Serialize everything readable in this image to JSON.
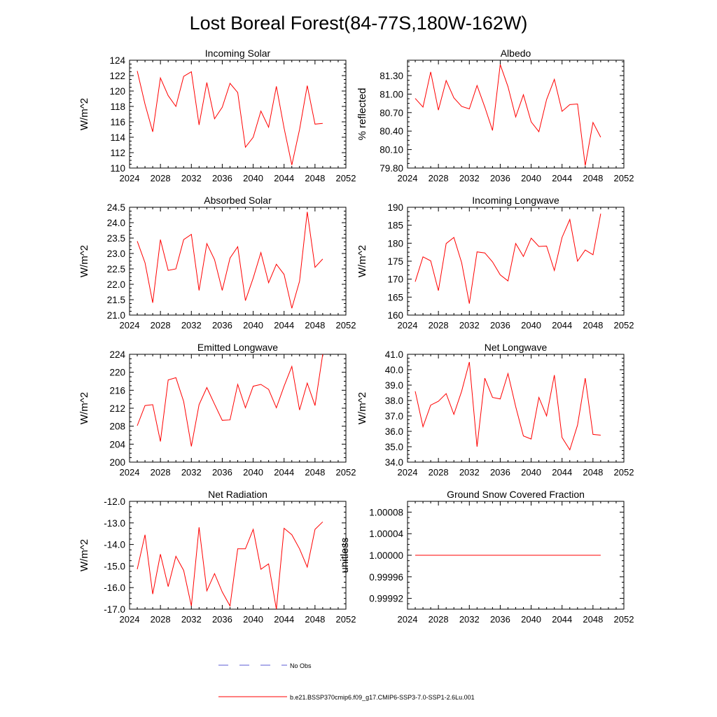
{
  "figure": {
    "title": "Lost Boreal Forest(84-77S,180W-162W)",
    "legend": [
      {
        "label": "No Obs",
        "color": "#5b5bd6",
        "dashed": true
      },
      {
        "label": "b.e21.BSSP370cmip6.f09_g17.CMIP6-SSP3-7.0-SSP1-2.6Lu.001",
        "color": "#ff0000",
        "dashed": false
      }
    ]
  },
  "chart_data": [
    {
      "type": "line",
      "title": "Incoming Solar",
      "xlabel": "",
      "ylabel": "W/m^2",
      "xlim": [
        2024,
        2052
      ],
      "xticks": [
        "2024",
        "2028",
        "2032",
        "2036",
        "2040",
        "2044",
        "2048",
        "2052"
      ],
      "ylim": [
        110,
        124
      ],
      "yticks": [
        "110",
        "112",
        "114",
        "116",
        "118",
        "120",
        "122",
        "124"
      ],
      "line_color": "#ff0000",
      "x": [
        2025,
        2026,
        2027,
        2028,
        2029,
        2030,
        2031,
        2032,
        2033,
        2034,
        2035,
        2036,
        2037,
        2038,
        2039,
        2040,
        2041,
        2042,
        2043,
        2044,
        2045,
        2046,
        2047,
        2048,
        2049
      ],
      "values": [
        122.6,
        118.3,
        114.7,
        121.7,
        119.4,
        118.0,
        121.9,
        122.5,
        115.6,
        121.1,
        116.4,
        117.9,
        121.0,
        119.8,
        112.7,
        114.0,
        117.4,
        115.3,
        120.6,
        115.2,
        110.4,
        115.0,
        120.7,
        115.7,
        115.8
      ]
    },
    {
      "type": "line",
      "title": "Albedo",
      "xlabel": "",
      "ylabel": "% reflected",
      "xlim": [
        2024,
        2052
      ],
      "xticks": [
        "2024",
        "2028",
        "2032",
        "2036",
        "2040",
        "2044",
        "2048",
        "2052"
      ],
      "ylim": [
        79.8,
        81.55
      ],
      "yticks": [
        "79.80",
        "80.10",
        "80.40",
        "80.70",
        "81.00",
        "81.30"
      ],
      "line_color": "#ff0000",
      "x": [
        2025,
        2026,
        2027,
        2028,
        2029,
        2030,
        2031,
        2032,
        2033,
        2034,
        2035,
        2036,
        2037,
        2038,
        2039,
        2040,
        2041,
        2042,
        2043,
        2044,
        2045,
        2046,
        2047,
        2048,
        2049
      ],
      "values": [
        80.93,
        80.79,
        81.36,
        80.74,
        81.22,
        80.94,
        80.8,
        80.76,
        81.14,
        80.79,
        80.41,
        81.48,
        81.12,
        80.63,
        80.99,
        80.55,
        80.39,
        80.91,
        81.24,
        80.72,
        80.83,
        80.84,
        79.84,
        80.54,
        80.3
      ]
    },
    {
      "type": "line",
      "title": "Absorbed Solar",
      "xlabel": "",
      "ylabel": "W/m^2",
      "xlim": [
        2024,
        2052
      ],
      "xticks": [
        "2024",
        "2028",
        "2032",
        "2036",
        "2040",
        "2044",
        "2048",
        "2052"
      ],
      "ylim": [
        21.0,
        24.5
      ],
      "yticks": [
        "21.0",
        "21.5",
        "22.0",
        "22.5",
        "23.0",
        "23.5",
        "24.0",
        "24.5"
      ],
      "line_color": "#ff0000",
      "x": [
        2025,
        2026,
        2027,
        2028,
        2029,
        2030,
        2031,
        2032,
        2033,
        2034,
        2035,
        2036,
        2037,
        2038,
        2039,
        2040,
        2041,
        2042,
        2043,
        2044,
        2045,
        2046,
        2047,
        2048,
        2049
      ],
      "values": [
        23.4,
        22.7,
        21.4,
        23.45,
        22.45,
        22.5,
        23.45,
        23.62,
        21.8,
        23.32,
        22.8,
        21.8,
        22.85,
        23.22,
        21.47,
        22.2,
        23.03,
        22.05,
        22.65,
        22.32,
        21.22,
        22.1,
        24.35,
        22.55,
        22.82
      ]
    },
    {
      "type": "line",
      "title": "Incoming Longwave",
      "xlabel": "",
      "ylabel": "W/m^2",
      "xlim": [
        2024,
        2052
      ],
      "xticks": [
        "2024",
        "2028",
        "2032",
        "2036",
        "2040",
        "2044",
        "2048",
        "2052"
      ],
      "ylim": [
        160,
        190
      ],
      "yticks": [
        "160",
        "165",
        "170",
        "175",
        "180",
        "185",
        "190"
      ],
      "line_color": "#ff0000",
      "x": [
        2025,
        2026,
        2027,
        2028,
        2029,
        2030,
        2031,
        2032,
        2033,
        2034,
        2035,
        2036,
        2037,
        2038,
        2039,
        2040,
        2041,
        2042,
        2043,
        2044,
        2045,
        2046,
        2047,
        2048,
        2049
      ],
      "values": [
        169.3,
        176.2,
        175.1,
        166.8,
        179.9,
        181.6,
        174.6,
        163.2,
        177.6,
        177.3,
        174.8,
        171.2,
        169.5,
        179.9,
        176.3,
        181.4,
        179.1,
        179.2,
        172.4,
        181.6,
        186.6,
        175.0,
        178.1,
        176.8,
        188.2
      ]
    },
    {
      "type": "line",
      "title": "Emitted Longwave",
      "xlabel": "",
      "ylabel": "W/m^2",
      "xlim": [
        2024,
        2052
      ],
      "xticks": [
        "2024",
        "2028",
        "2032",
        "2036",
        "2040",
        "2044",
        "2048",
        "2052"
      ],
      "ylim": [
        200,
        224
      ],
      "yticks": [
        "200",
        "204",
        "208",
        "212",
        "216",
        "220",
        "224"
      ],
      "line_color": "#ff0000",
      "x": [
        2025,
        2026,
        2027,
        2028,
        2029,
        2030,
        2031,
        2032,
        2033,
        2034,
        2035,
        2036,
        2037,
        2038,
        2039,
        2040,
        2041,
        2042,
        2043,
        2044,
        2045,
        2046,
        2047,
        2048,
        2049
      ],
      "values": [
        208.1,
        212.6,
        212.8,
        204.6,
        218.3,
        218.8,
        213.5,
        203.5,
        212.8,
        216.6,
        212.9,
        209.3,
        209.4,
        217.3,
        212.1,
        216.9,
        217.3,
        216.2,
        212.1,
        216.9,
        221.3,
        211.6,
        217.6,
        212.6,
        224.0
      ]
    },
    {
      "type": "line",
      "title": "Net Longwave",
      "xlabel": "",
      "ylabel": "W/m^2",
      "xlim": [
        2024,
        2052
      ],
      "xticks": [
        "2024",
        "2028",
        "2032",
        "2036",
        "2040",
        "2044",
        "2048",
        "2052"
      ],
      "ylim": [
        34.0,
        41.0
      ],
      "yticks": [
        "34.0",
        "35.0",
        "36.0",
        "37.0",
        "38.0",
        "39.0",
        "40.0",
        "41.0"
      ],
      "line_color": "#ff0000",
      "x": [
        2025,
        2026,
        2027,
        2028,
        2029,
        2030,
        2031,
        2032,
        2033,
        2034,
        2035,
        2036,
        2037,
        2038,
        2039,
        2040,
        2041,
        2042,
        2043,
        2044,
        2045,
        2046,
        2047,
        2048,
        2049
      ],
      "values": [
        38.6,
        36.3,
        37.7,
        37.95,
        38.45,
        37.1,
        38.6,
        40.5,
        35.0,
        39.45,
        38.2,
        38.1,
        39.75,
        37.6,
        35.7,
        35.5,
        38.2,
        37.0,
        39.65,
        35.6,
        34.8,
        36.4,
        39.45,
        35.8,
        35.75
      ]
    },
    {
      "type": "line",
      "title": "Net Radiation",
      "xlabel": "",
      "ylabel": "W/m^2",
      "xlim": [
        2024,
        2052
      ],
      "xticks": [
        "2024",
        "2028",
        "2032",
        "2036",
        "2040",
        "2044",
        "2048",
        "2052"
      ],
      "ylim": [
        -17.0,
        -12.0
      ],
      "yticks": [
        "-17.0",
        "-16.0",
        "-15.0",
        "-14.0",
        "-13.0",
        "-12.0"
      ],
      "line_color": "#ff0000",
      "x": [
        2025,
        2026,
        2027,
        2028,
        2029,
        2030,
        2031,
        2032,
        2033,
        2034,
        2035,
        2036,
        2037,
        2038,
        2039,
        2040,
        2041,
        2042,
        2043,
        2044,
        2045,
        2046,
        2047,
        2048,
        2049
      ],
      "values": [
        -15.15,
        -13.55,
        -16.3,
        -14.45,
        -15.95,
        -14.55,
        -15.2,
        -16.85,
        -13.2,
        -16.15,
        -15.35,
        -16.2,
        -16.85,
        -14.2,
        -14.2,
        -13.3,
        -15.15,
        -14.9,
        -17.0,
        -13.25,
        -13.55,
        -14.2,
        -15.05,
        -13.3,
        -12.95
      ]
    },
    {
      "type": "line",
      "title": "Ground Snow Covered Fraction",
      "xlabel": "",
      "ylabel": "unitless",
      "xlim": [
        2024,
        2052
      ],
      "xticks": [
        "2024",
        "2028",
        "2032",
        "2036",
        "2040",
        "2044",
        "2048",
        "2052"
      ],
      "ylim": [
        0.9999,
        1.0001
      ],
      "yticks": [
        "0.99992",
        "0.99996",
        "1.00000",
        "1.00004",
        "1.00008"
      ],
      "line_color": "#ff0000",
      "x": [
        2025,
        2026,
        2027,
        2028,
        2029,
        2030,
        2031,
        2032,
        2033,
        2034,
        2035,
        2036,
        2037,
        2038,
        2039,
        2040,
        2041,
        2042,
        2043,
        2044,
        2045,
        2046,
        2047,
        2048,
        2049
      ],
      "values": [
        1,
        1,
        1,
        1,
        1,
        1,
        1,
        1,
        1,
        1,
        1,
        1,
        1,
        1,
        1,
        1,
        1,
        1,
        1,
        1,
        1,
        1,
        1,
        1,
        1
      ]
    }
  ]
}
